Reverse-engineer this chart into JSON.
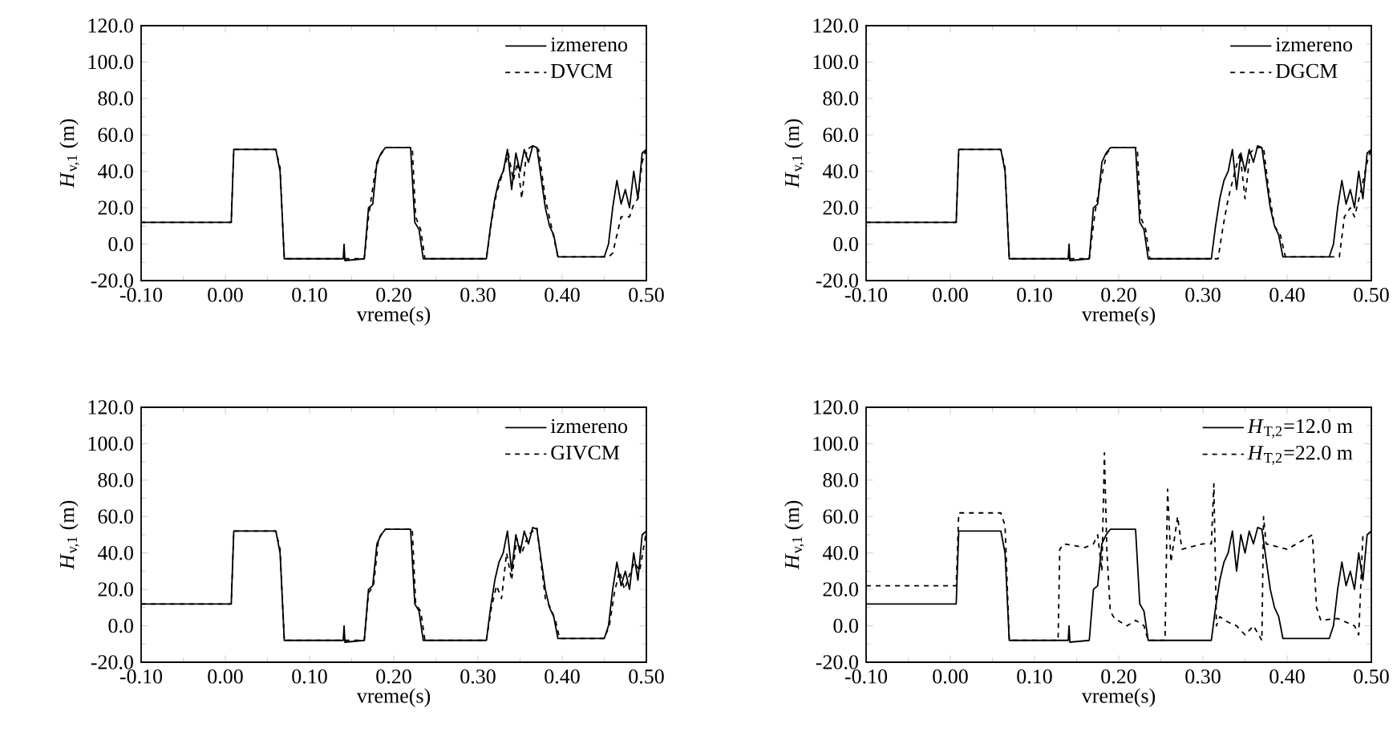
{
  "chart_data": [
    {
      "type": "line",
      "xlabel": "vreme(s)",
      "ylabel": "*H*$_{v,1}$ (m)",
      "xlim": [
        -0.1,
        0.5
      ],
      "ylim": [
        -20,
        120
      ],
      "xticks": [
        {
          "value": -0.1,
          "label": "-0.10"
        },
        {
          "value": 0,
          "label": "0.00"
        },
        {
          "value": 0.1,
          "label": "0.10"
        },
        {
          "value": 0.2,
          "label": "0.20"
        },
        {
          "value": 0.3,
          "label": "0.30"
        },
        {
          "value": 0.4,
          "label": "0.40"
        },
        {
          "value": 0.5,
          "label": "0.50"
        }
      ],
      "yticks": [
        {
          "value": -20,
          "label": "-20.0"
        },
        {
          "value": 0,
          "label": "0.0"
        },
        {
          "value": 20,
          "label": "20.0"
        },
        {
          "value": 40,
          "label": "40.0"
        },
        {
          "value": 60,
          "label": "60.0"
        },
        {
          "value": 80,
          "label": "80.0"
        },
        {
          "value": 100,
          "label": "100.0"
        },
        {
          "value": 120,
          "label": "120.0"
        }
      ],
      "legend": "top right",
      "grid": false,
      "series": [
        {
          "name": "izmereno",
          "color": "#000000",
          "line_style": "solid",
          "x": [
            -0.1,
            0.007,
            0.01,
            0.06,
            0.065,
            0.07,
            0.14,
            0.141,
            0.142,
            0.165,
            0.17,
            0.175,
            0.18,
            0.185,
            0.19,
            0.22,
            0.225,
            0.23,
            0.235,
            0.31,
            0.315,
            0.32,
            0.325,
            0.33,
            0.335,
            0.34,
            0.345,
            0.35,
            0.355,
            0.36,
            0.365,
            0.37,
            0.38,
            0.385,
            0.39,
            0.395,
            0.45,
            0.455,
            0.46,
            0.465,
            0.47,
            0.475,
            0.48,
            0.485,
            0.49,
            0.495,
            0.5
          ],
          "values": [
            12,
            12,
            52,
            52,
            40,
            -8,
            -8,
            0,
            -9,
            -8,
            20,
            22,
            45,
            50,
            53,
            53,
            12,
            8,
            -8,
            -8,
            10,
            25,
            35,
            40,
            52,
            30,
            50,
            40,
            52,
            45,
            54,
            53,
            20,
            10,
            5,
            -7,
            -7,
            0,
            20,
            35,
            22,
            30,
            20,
            40,
            25,
            50,
            52
          ]
        },
        {
          "name": "DVCM",
          "color": "#000000",
          "line_style": "dashed",
          "x": [
            -0.1,
            0.007,
            0.01,
            0.06,
            0.065,
            0.07,
            0.165,
            0.17,
            0.178,
            0.183,
            0.19,
            0.222,
            0.226,
            0.232,
            0.237,
            0.31,
            0.316,
            0.322,
            0.33,
            0.336,
            0.342,
            0.347,
            0.352,
            0.358,
            0.365,
            0.372,
            0.38,
            0.388,
            0.395,
            0.455,
            0.46,
            0.47,
            0.48,
            0.485,
            0.49,
            0.495,
            0.5
          ],
          "values": [
            12,
            12,
            52,
            52,
            42,
            -8,
            -8,
            15,
            40,
            48,
            53,
            53,
            15,
            8,
            -8,
            -8,
            12,
            28,
            40,
            50,
            35,
            45,
            25,
            52,
            54,
            52,
            25,
            8,
            -7,
            -7,
            -5,
            15,
            15,
            22,
            25,
            45,
            53
          ]
        }
      ]
    },
    {
      "type": "line",
      "xlabel": "vreme(s)",
      "ylabel": "*H*$_{v,1}$ (m)",
      "xlim": [
        -0.1,
        0.5
      ],
      "ylim": [
        -20,
        120
      ],
      "xticks": [
        {
          "value": -0.1,
          "label": "-0.10"
        },
        {
          "value": 0,
          "label": "0.00"
        },
        {
          "value": 0.1,
          "label": "0.10"
        },
        {
          "value": 0.2,
          "label": "0.20"
        },
        {
          "value": 0.3,
          "label": "0.30"
        },
        {
          "value": 0.4,
          "label": "0.40"
        },
        {
          "value": 0.5,
          "label": "0.50"
        }
      ],
      "yticks": [
        {
          "value": -20,
          "label": "-20.0"
        },
        {
          "value": 0,
          "label": "0.0"
        },
        {
          "value": 20,
          "label": "20.0"
        },
        {
          "value": 40,
          "label": "40.0"
        },
        {
          "value": 60,
          "label": "60.0"
        },
        {
          "value": 80,
          "label": "80.0"
        },
        {
          "value": 100,
          "label": "100.0"
        },
        {
          "value": 120,
          "label": "120.0"
        }
      ],
      "legend": "top right",
      "grid": false,
      "series": [
        {
          "name": "izmereno",
          "color": "#000000",
          "line_style": "solid",
          "x": [
            -0.1,
            0.007,
            0.01,
            0.06,
            0.065,
            0.07,
            0.14,
            0.141,
            0.142,
            0.165,
            0.17,
            0.175,
            0.18,
            0.185,
            0.19,
            0.22,
            0.225,
            0.23,
            0.235,
            0.31,
            0.315,
            0.32,
            0.325,
            0.33,
            0.335,
            0.34,
            0.345,
            0.35,
            0.355,
            0.36,
            0.365,
            0.37,
            0.38,
            0.385,
            0.39,
            0.395,
            0.45,
            0.455,
            0.46,
            0.465,
            0.47,
            0.475,
            0.48,
            0.485,
            0.49,
            0.495,
            0.5
          ],
          "values": [
            12,
            12,
            52,
            52,
            40,
            -8,
            -8,
            0,
            -9,
            -8,
            20,
            22,
            45,
            50,
            53,
            53,
            12,
            8,
            -8,
            -8,
            10,
            25,
            35,
            40,
            52,
            30,
            50,
            40,
            52,
            45,
            54,
            53,
            20,
            10,
            5,
            -7,
            -7,
            0,
            20,
            35,
            22,
            30,
            20,
            40,
            25,
            50,
            52
          ]
        },
        {
          "name": "DGCM",
          "color": "#000000",
          "line_style": "dashed",
          "x": [
            -0.1,
            0.007,
            0.01,
            0.06,
            0.065,
            0.07,
            0.165,
            0.172,
            0.18,
            0.186,
            0.192,
            0.222,
            0.226,
            0.232,
            0.237,
            0.318,
            0.324,
            0.33,
            0.338,
            0.344,
            0.35,
            0.356,
            0.362,
            0.372,
            0.378,
            0.385,
            0.392,
            0.398,
            0.462,
            0.468,
            0.475,
            0.48,
            0.488,
            0.495,
            0.5
          ],
          "values": [
            12,
            12,
            52,
            52,
            42,
            -8,
            -8,
            18,
            38,
            50,
            53,
            53,
            15,
            8,
            -8,
            -8,
            10,
            25,
            40,
            50,
            25,
            50,
            53,
            53,
            30,
            10,
            5,
            -7,
            -7,
            15,
            20,
            15,
            30,
            45,
            53
          ]
        }
      ]
    },
    {
      "type": "line",
      "xlabel": "vreme(s)",
      "ylabel": "*H*$_{v,1}$ (m)",
      "xlim": [
        -0.1,
        0.5
      ],
      "ylim": [
        -20,
        120
      ],
      "xticks": [
        {
          "value": -0.1,
          "label": "-0.10"
        },
        {
          "value": 0,
          "label": "0.00"
        },
        {
          "value": 0.1,
          "label": "0.10"
        },
        {
          "value": 0.2,
          "label": "0.20"
        },
        {
          "value": 0.3,
          "label": "0.30"
        },
        {
          "value": 0.4,
          "label": "0.40"
        },
        {
          "value": 0.5,
          "label": "0.50"
        }
      ],
      "yticks": [
        {
          "value": -20,
          "label": "-20.0"
        },
        {
          "value": 0,
          "label": "0.0"
        },
        {
          "value": 20,
          "label": "20.0"
        },
        {
          "value": 40,
          "label": "40.0"
        },
        {
          "value": 60,
          "label": "60.0"
        },
        {
          "value": 80,
          "label": "80.0"
        },
        {
          "value": 100,
          "label": "100.0"
        },
        {
          "value": 120,
          "label": "120.0"
        }
      ],
      "legend": "top right",
      "grid": false,
      "series": [
        {
          "name": "izmereno",
          "color": "#000000",
          "line_style": "solid",
          "x": [
            -0.1,
            0.007,
            0.01,
            0.06,
            0.065,
            0.07,
            0.14,
            0.141,
            0.142,
            0.165,
            0.17,
            0.175,
            0.18,
            0.185,
            0.19,
            0.22,
            0.225,
            0.23,
            0.235,
            0.31,
            0.315,
            0.32,
            0.325,
            0.33,
            0.335,
            0.34,
            0.345,
            0.35,
            0.355,
            0.36,
            0.365,
            0.37,
            0.38,
            0.385,
            0.39,
            0.395,
            0.45,
            0.455,
            0.46,
            0.465,
            0.47,
            0.475,
            0.48,
            0.485,
            0.49,
            0.495,
            0.5
          ],
          "values": [
            12,
            12,
            52,
            52,
            40,
            -8,
            -8,
            0,
            -9,
            -8,
            20,
            22,
            45,
            50,
            53,
            53,
            12,
            8,
            -8,
            -8,
            10,
            25,
            35,
            40,
            52,
            30,
            50,
            40,
            52,
            45,
            54,
            53,
            20,
            10,
            5,
            -7,
            -7,
            0,
            20,
            35,
            22,
            30,
            20,
            40,
            25,
            50,
            52
          ]
        },
        {
          "name": "GIVCM",
          "color": "#000000",
          "line_style": "dashed",
          "x": [
            -0.1,
            0.007,
            0.01,
            0.06,
            0.065,
            0.07,
            0.165,
            0.17,
            0.176,
            0.182,
            0.19,
            0.222,
            0.226,
            0.232,
            0.237,
            0.31,
            0.316,
            0.322,
            0.328,
            0.334,
            0.34,
            0.346,
            0.352,
            0.36,
            0.37,
            0.38,
            0.386,
            0.392,
            0.397,
            0.45,
            0.456,
            0.462,
            0.468,
            0.474,
            0.48,
            0.486,
            0.492,
            0.5
          ],
          "values": [
            12,
            12,
            52,
            52,
            42,
            -8,
            -8,
            18,
            22,
            48,
            53,
            53,
            12,
            8,
            -8,
            -8,
            10,
            22,
            15,
            40,
            25,
            48,
            40,
            50,
            54,
            15,
            10,
            3,
            -7,
            -7,
            0,
            18,
            30,
            20,
            28,
            35,
            30,
            52
          ]
        }
      ]
    },
    {
      "type": "line",
      "xlabel": "vreme(s)",
      "ylabel": "*H*$_{v,1}$ (m)",
      "xlim": [
        -0.1,
        0.5
      ],
      "ylim": [
        -20,
        120
      ],
      "xticks": [
        {
          "value": -0.1,
          "label": "-0.10"
        },
        {
          "value": 0,
          "label": "0.00"
        },
        {
          "value": 0.1,
          "label": "0.10"
        },
        {
          "value": 0.2,
          "label": "0.20"
        },
        {
          "value": 0.3,
          "label": "0.30"
        },
        {
          "value": 0.4,
          "label": "0.40"
        },
        {
          "value": 0.5,
          "label": "0.50"
        }
      ],
      "yticks": [
        {
          "value": -20,
          "label": "-20.0"
        },
        {
          "value": 0,
          "label": "0.0"
        },
        {
          "value": 20,
          "label": "20.0"
        },
        {
          "value": 40,
          "label": "40.0"
        },
        {
          "value": 60,
          "label": "60.0"
        },
        {
          "value": 80,
          "label": "80.0"
        },
        {
          "value": 100,
          "label": "100.0"
        },
        {
          "value": 120,
          "label": "120.0"
        }
      ],
      "legend": "top right",
      "grid": false,
      "series": [
        {
          "name": "*H*$_{T,2}$=12.0 m",
          "color": "#000000",
          "line_style": "solid",
          "x": [
            -0.1,
            0.007,
            0.01,
            0.06,
            0.065,
            0.07,
            0.14,
            0.141,
            0.142,
            0.165,
            0.17,
            0.175,
            0.18,
            0.185,
            0.19,
            0.22,
            0.225,
            0.23,
            0.235,
            0.31,
            0.315,
            0.32,
            0.325,
            0.33,
            0.335,
            0.34,
            0.345,
            0.35,
            0.355,
            0.36,
            0.365,
            0.37,
            0.38,
            0.385,
            0.39,
            0.395,
            0.45,
            0.455,
            0.46,
            0.465,
            0.47,
            0.475,
            0.48,
            0.485,
            0.49,
            0.495,
            0.5
          ],
          "values": [
            12,
            12,
            52,
            52,
            40,
            -8,
            -8,
            0,
            -9,
            -8,
            20,
            22,
            45,
            50,
            53,
            53,
            12,
            8,
            -8,
            -8,
            10,
            25,
            35,
            40,
            52,
            30,
            50,
            40,
            52,
            45,
            54,
            53,
            20,
            10,
            5,
            -7,
            -7,
            0,
            20,
            35,
            22,
            30,
            20,
            40,
            25,
            50,
            52
          ]
        },
        {
          "name": "*H*$_{T,2}$=22.0 m",
          "color": "#000000",
          "line_style": "dashed",
          "x": [
            -0.1,
            0.007,
            0.01,
            0.06,
            0.065,
            0.07,
            0.128,
            0.13,
            0.135,
            0.16,
            0.17,
            0.175,
            0.18,
            0.183,
            0.186,
            0.19,
            0.195,
            0.21,
            0.22,
            0.23,
            0.235,
            0.255,
            0.258,
            0.262,
            0.27,
            0.275,
            0.3,
            0.31,
            0.313,
            0.316,
            0.32,
            0.33,
            0.34,
            0.35,
            0.36,
            0.37,
            0.372,
            0.375,
            0.4,
            0.43,
            0.435,
            0.44,
            0.46,
            0.48,
            0.485,
            0.49
          ],
          "values": [
            22,
            22,
            62,
            62,
            55,
            -8,
            -8,
            42,
            45,
            43,
            45,
            50,
            30,
            95,
            40,
            8,
            4,
            0,
            3,
            0,
            -8,
            -8,
            75,
            35,
            60,
            42,
            45,
            45,
            78,
            0,
            5,
            2,
            0,
            -5,
            0,
            -8,
            60,
            45,
            42,
            50,
            10,
            3,
            4,
            0,
            -5,
            50
          ]
        }
      ]
    }
  ]
}
